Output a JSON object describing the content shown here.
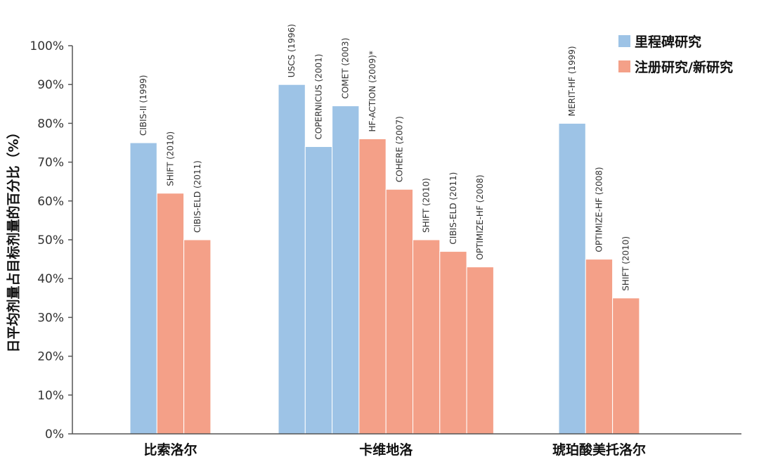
{
  "chart_data": {
    "type": "bar",
    "ylabel": "日平均剂量占目标剂量的百分比（%）",
    "ylim": [
      0,
      100
    ],
    "yticks": [
      0,
      10,
      20,
      30,
      40,
      50,
      60,
      70,
      80,
      90,
      100
    ],
    "ytick_suffix": "%",
    "grid": false,
    "legend_position": "top-right",
    "legend": [
      {
        "name": "里程碑研究",
        "color": "#9dc3e6"
      },
      {
        "name": "注册研究/新研究",
        "color": "#f4a088"
      }
    ],
    "groups": [
      {
        "label": "比索洛尔",
        "bars": [
          {
            "label": "CIBIS-II (1999)",
            "value": 75,
            "series": "里程碑研究"
          },
          {
            "label": "SHIFT (2010)",
            "value": 62,
            "series": "注册研究/新研究"
          },
          {
            "label": "CIBIS-ELD (2011)",
            "value": 50,
            "series": "注册研究/新研究"
          }
        ]
      },
      {
        "label": "卡维地洛",
        "bars": [
          {
            "label": "USCS (1996)",
            "value": 90,
            "series": "里程碑研究"
          },
          {
            "label": "COPERNICUS (2001)",
            "value": 74,
            "series": "里程碑研究"
          },
          {
            "label": "COMET (2003)",
            "value": 84.5,
            "series": "里程碑研究"
          },
          {
            "label": "HF-ACTION (2009)*",
            "value": 76,
            "series": "注册研究/新研究"
          },
          {
            "label": "COHERE (2007)",
            "value": 63,
            "series": "注册研究/新研究"
          },
          {
            "label": "SHIFT (2010)",
            "value": 50,
            "series": "注册研究/新研究"
          },
          {
            "label": "CIBIS-ELD (2011)",
            "value": 47,
            "series": "注册研究/新研究"
          },
          {
            "label": "OPTIMIZE-HF (2008)",
            "value": 43,
            "series": "注册研究/新研究"
          }
        ]
      },
      {
        "label": "琥珀酸美托洛尔",
        "bars": [
          {
            "label": "MERIT-HF (1999)",
            "value": 80,
            "series": "里程碑研究"
          },
          {
            "label": "OPTIMIZE-HF (2008)",
            "value": 45,
            "series": "注册研究/新研究"
          },
          {
            "label": "SHIFT (2010)",
            "value": 35,
            "series": "注册研究/新研究"
          }
        ]
      }
    ]
  }
}
